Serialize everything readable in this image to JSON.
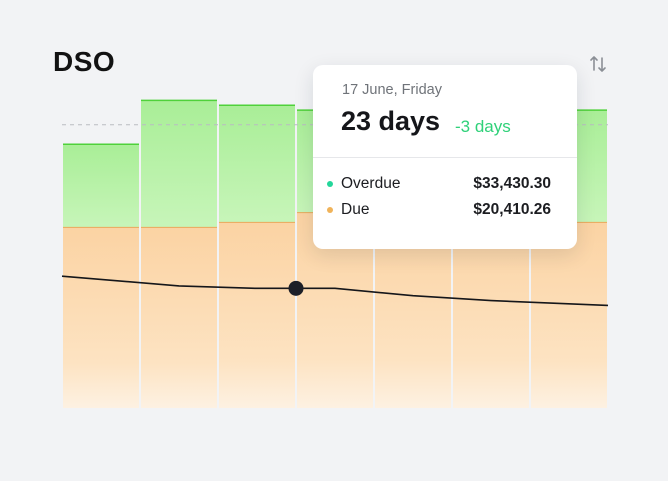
{
  "title": "DSO",
  "icons": {
    "sort": "sort-arrows-icon"
  },
  "colors": {
    "overdue": "#23d69a",
    "due": "#f0b35a",
    "overdue_fill": "#b6f2a6",
    "due_fill": "#fbd9ad",
    "delta": "#2fd179"
  },
  "tooltip": {
    "date": "17 June, Friday",
    "value": "23 days",
    "delta": "-3 days",
    "rows": [
      {
        "label": "Overdue",
        "amount": "$33,430.30",
        "color": "#23d69a"
      },
      {
        "label": "Due",
        "amount": "$20,410.26",
        "color": "#f0b35a"
      }
    ]
  },
  "chart_data": {
    "type": "bar",
    "stacked": true,
    "series": [
      {
        "values": [
          37,
          37,
          38,
          40,
          39,
          39,
          38
        ]
      },
      {
        "values": [
          17,
          26,
          24,
          21,
          25,
          25,
          23
        ]
      }
    ],
    "line": {
      "values": [
        27,
        25,
        24.5,
        24.5,
        23,
        22,
        21
      ]
    },
    "highlight_index": 3,
    "y_max": 60,
    "reference_line": 58,
    "grid": false
  }
}
